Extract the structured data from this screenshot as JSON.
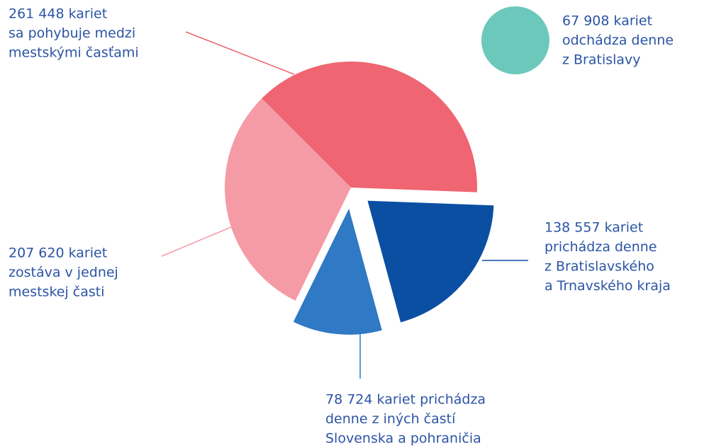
{
  "chart_data": {
    "type": "pie",
    "values": [
      261448,
      207620,
      138557,
      78724
    ],
    "value_labels": [
      "261 448 kariet",
      "207 620 kariet",
      "138 557 kariet",
      "78 724 kariet prichádza"
    ],
    "descriptions": [
      [
        "sa pohybuje medzi",
        "mestskými časťami"
      ],
      [
        "zostáva v jednej",
        "mestskej časti"
      ],
      [
        "prichádza denne",
        "z Bratislavského",
        "a Trnavského kraja"
      ],
      [
        "denne z iných častí",
        "Slovenska a pohraničia"
      ]
    ],
    "colors": [
      "#ef6571",
      "#f59ba6",
      "#0b4fa3",
      "#2f79c5"
    ],
    "exploded": [
      false,
      false,
      true,
      true
    ],
    "outflow": {
      "value": 67908,
      "value_label": "67 908 kariet",
      "description": [
        "odchádza denne",
        "z Bratislavy"
      ],
      "color": "#6dc8bc"
    }
  }
}
